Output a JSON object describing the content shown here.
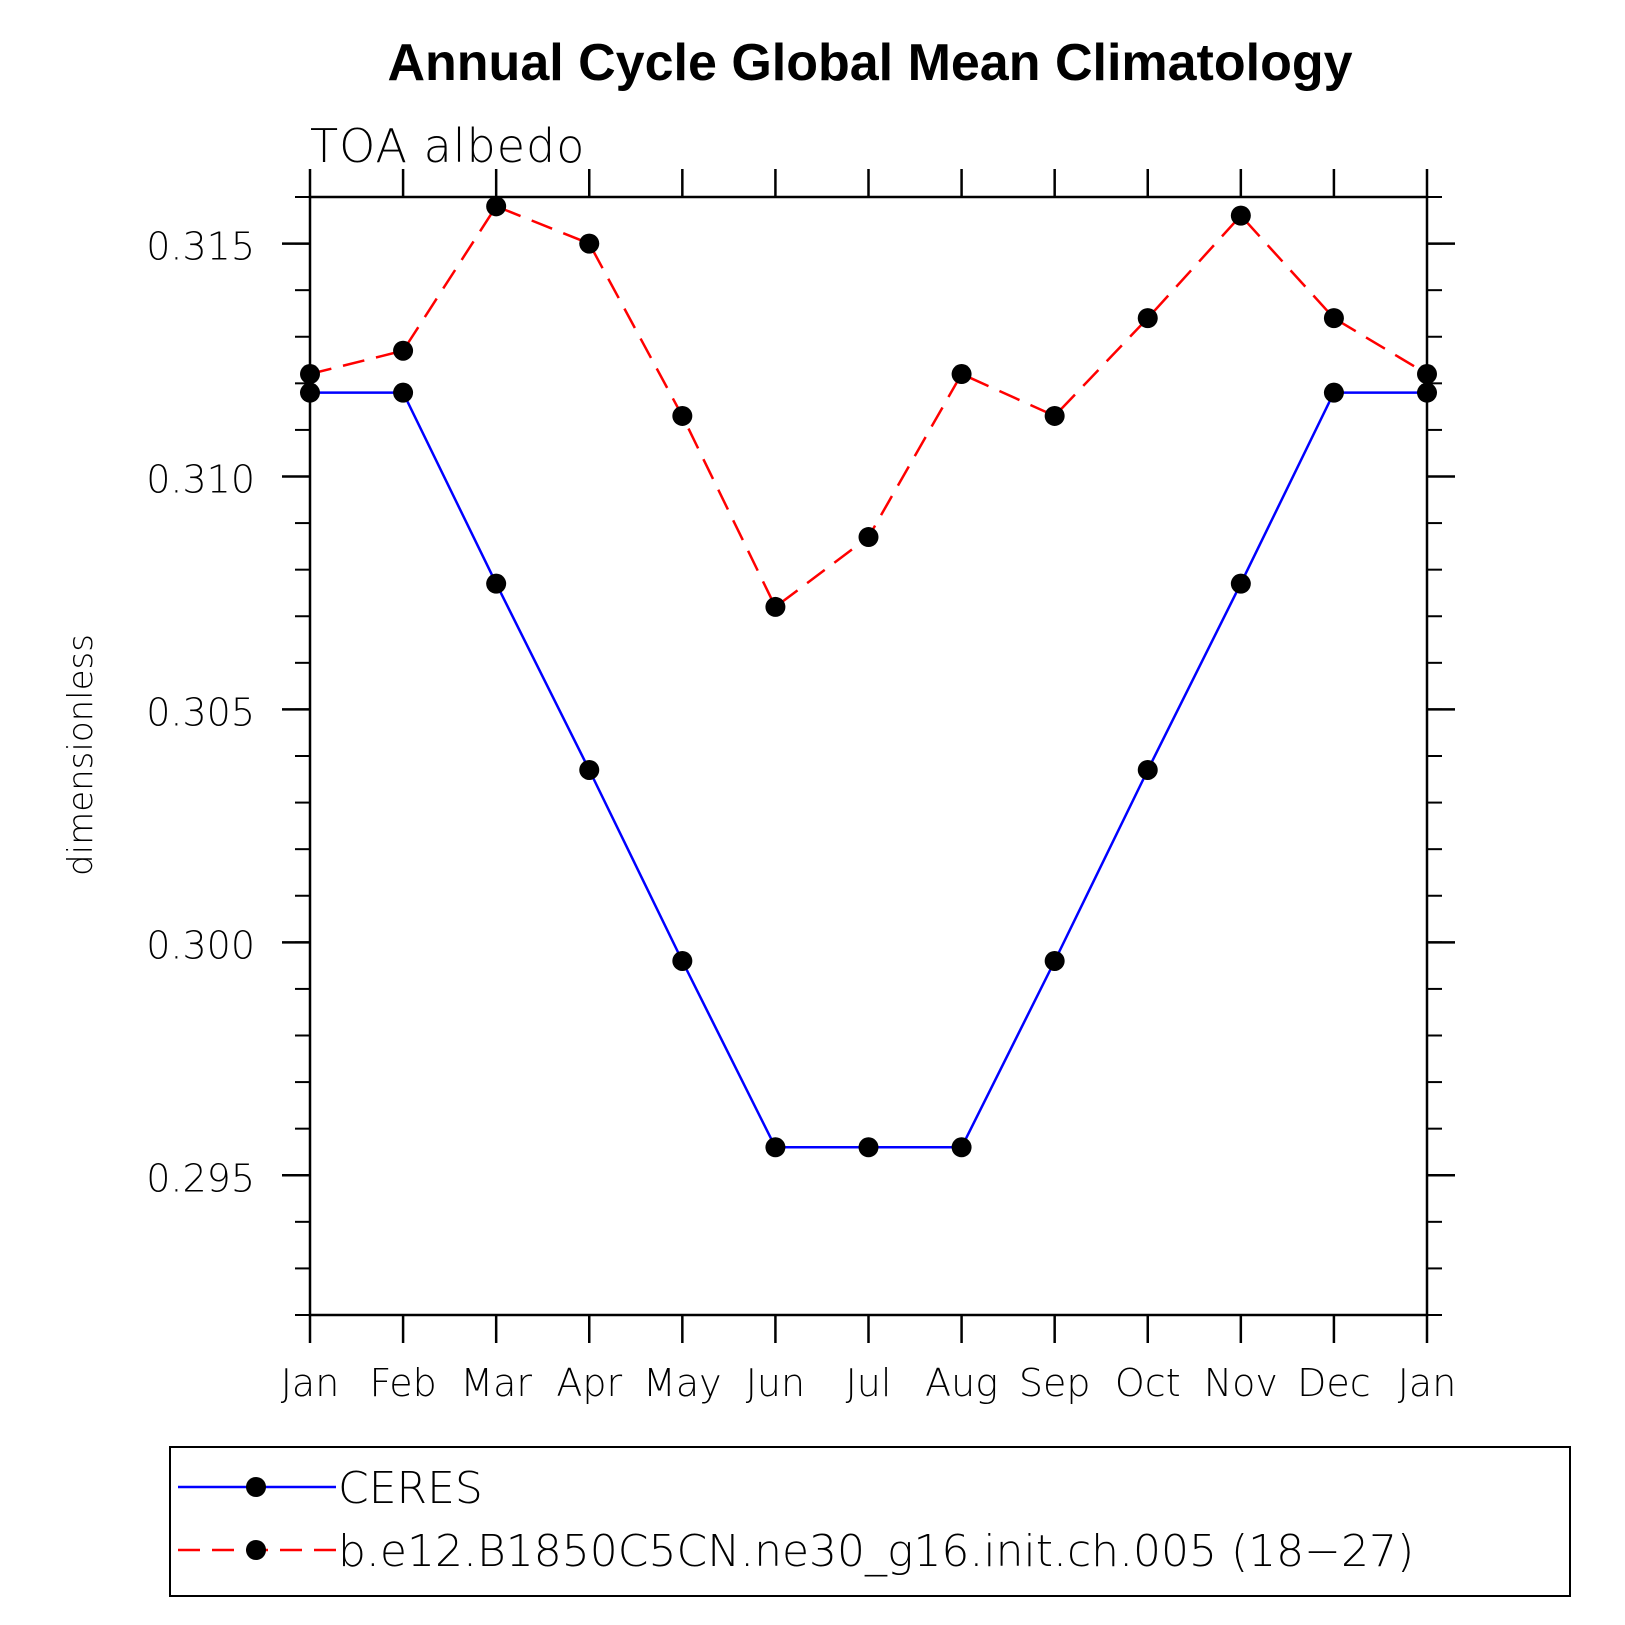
{
  "chart_data": {
    "type": "line",
    "title": "Annual Cycle Global Mean Climatology",
    "subtitle": "TOA albedo",
    "xlabel": "",
    "ylabel": "dimensionless",
    "categories": [
      "Jan",
      "Feb",
      "Mar",
      "Apr",
      "May",
      "Jun",
      "Jul",
      "Aug",
      "Sep",
      "Oct",
      "Nov",
      "Dec",
      "Jan"
    ],
    "ylim": [
      0.292,
      0.316
    ],
    "yticks": [
      0.295,
      0.3,
      0.305,
      0.31,
      0.315
    ],
    "ytick_labels": [
      "0.295",
      "0.300",
      "0.305",
      "0.310",
      "0.315"
    ],
    "grid": false,
    "legend_position": "bottom",
    "series": [
      {
        "name": "CERES",
        "color": "#0000ff",
        "style": "solid",
        "marker": "filled-circle",
        "values": [
          0.3118,
          0.3118,
          0.3077,
          0.3037,
          0.2996,
          0.2956,
          0.2956,
          0.2956,
          0.2996,
          0.3037,
          0.3077,
          0.3118,
          0.3118
        ]
      },
      {
        "name": "b.e12.B1850C5CN.ne30_g16.init.ch.005 (18−27)",
        "color": "#ff0000",
        "style": "dashed",
        "marker": "filled-circle",
        "values": [
          0.3122,
          0.3127,
          0.3158,
          0.315,
          0.3113,
          0.3072,
          0.3087,
          0.3122,
          0.3113,
          0.3134,
          0.3156,
          0.3134,
          0.3122
        ]
      }
    ]
  }
}
